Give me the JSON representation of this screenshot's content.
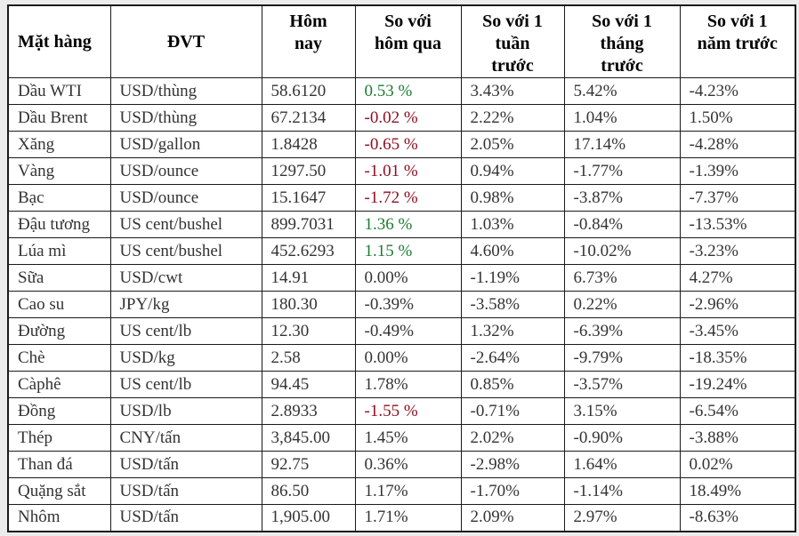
{
  "colors": {
    "positive_green": "#1e7b34",
    "negative_red": "#8e1021",
    "body_text": "#333333",
    "border": "#1a1a1a",
    "page_background": "#ececec",
    "table_background": "#ffffff"
  },
  "chart_data": {
    "type": "table",
    "columns": [
      "Mặt hàng",
      "ĐVT",
      "Hôm nay",
      "So với hôm qua",
      "So với 1 tuần trước",
      "So với 1 tháng trước",
      "So với 1 năm trước"
    ],
    "header_lines": [
      "Mặt hàng",
      "ĐVT",
      "Hôm\nnay",
      "So với\nhôm qua",
      "So với 1\ntuần\ntrước",
      "So với 1\ntháng\ntrước",
      "So với 1\nnăm trước"
    ],
    "rows": [
      {
        "commodity": "Dầu WTI",
        "unit": "USD/thùng",
        "today": "58.6120",
        "vs_yesterday": "0.53 %",
        "vs_yesterday_trend": "up",
        "vs_week": "3.43%",
        "vs_month": "5.42%",
        "vs_year": "-4.23%"
      },
      {
        "commodity": "Dầu Brent",
        "unit": "USD/thùng",
        "today": "67.2134",
        "vs_yesterday": "-0.02 %",
        "vs_yesterday_trend": "down",
        "vs_week": "2.22%",
        "vs_month": "1.04%",
        "vs_year": "1.50%"
      },
      {
        "commodity": "Xăng",
        "unit": "USD/gallon",
        "today": "1.8428",
        "vs_yesterday": "-0.65 %",
        "vs_yesterday_trend": "down",
        "vs_week": "2.05%",
        "vs_month": "17.14%",
        "vs_year": "-4.28%"
      },
      {
        "commodity": "Vàng",
        "unit": "USD/ounce",
        "today": "1297.50",
        "vs_yesterday": "-1.01 %",
        "vs_yesterday_trend": "down",
        "vs_week": "0.94%",
        "vs_month": "-1.77%",
        "vs_year": "-1.39%"
      },
      {
        "commodity": "Bạc",
        "unit": "USD/ounce",
        "today": "15.1647",
        "vs_yesterday": "-1.72 %",
        "vs_yesterday_trend": "down",
        "vs_week": "0.98%",
        "vs_month": "-3.87%",
        "vs_year": "-7.37%"
      },
      {
        "commodity": "Đậu tương",
        "unit": "US cent/bushel",
        "today": "899.7031",
        "vs_yesterday": "1.36 %",
        "vs_yesterday_trend": "up",
        "vs_week": "1.03%",
        "vs_month": "-0.84%",
        "vs_year": "-13.53%"
      },
      {
        "commodity": "Lúa mì",
        "unit": "US cent/bushel",
        "today": "452.6293",
        "vs_yesterday": "1.15 %",
        "vs_yesterday_trend": "up",
        "vs_week": "4.60%",
        "vs_month": "-10.02%",
        "vs_year": "-3.23%"
      },
      {
        "commodity": "Sữa",
        "unit": "USD/cwt",
        "today": "14.91",
        "vs_yesterday": "0.00%",
        "vs_yesterday_trend": "none",
        "vs_week": "-1.19%",
        "vs_month": "6.73%",
        "vs_year": "4.27%"
      },
      {
        "commodity": "Cao su",
        "unit": "JPY/kg",
        "today": "180.30",
        "vs_yesterday": "-0.39%",
        "vs_yesterday_trend": "none",
        "vs_week": "-3.58%",
        "vs_month": "0.22%",
        "vs_year": "-2.96%"
      },
      {
        "commodity": "Đường",
        "unit": "US cent/lb",
        "today": "12.30",
        "vs_yesterday": "-0.49%",
        "vs_yesterday_trend": "none",
        "vs_week": "1.32%",
        "vs_month": "-6.39%",
        "vs_year": "-3.45%"
      },
      {
        "commodity": "Chè",
        "unit": "USD/kg",
        "today": "2.58",
        "vs_yesterday": "0.00%",
        "vs_yesterday_trend": "none",
        "vs_week": "-2.64%",
        "vs_month": "-9.79%",
        "vs_year": "-18.35%"
      },
      {
        "commodity": "Càphê",
        "unit": "US cent/lb",
        "today": "94.45",
        "vs_yesterday": "1.78%",
        "vs_yesterday_trend": "none",
        "vs_week": "0.85%",
        "vs_month": "-3.57%",
        "vs_year": "-19.24%"
      },
      {
        "commodity": "Đồng",
        "unit": "USD/lb",
        "today": "2.8933",
        "vs_yesterday": "-1.55 %",
        "vs_yesterday_trend": "down",
        "vs_week": "-0.71%",
        "vs_month": "3.15%",
        "vs_year": "-6.54%"
      },
      {
        "commodity": "Thép",
        "unit": "CNY/tấn",
        "today": "3,845.00",
        "vs_yesterday": "1.45%",
        "vs_yesterday_trend": "none",
        "vs_week": "2.02%",
        "vs_month": "-0.90%",
        "vs_year": "-3.88%"
      },
      {
        "commodity": "Than đá",
        "unit": "USD/tấn",
        "today": "92.75",
        "vs_yesterday": "0.36%",
        "vs_yesterday_trend": "none",
        "vs_week": "-2.98%",
        "vs_month": "1.64%",
        "vs_year": "0.02%"
      },
      {
        "commodity": "Quặng sắt",
        "unit": "USD/tấn",
        "today": "86.50",
        "vs_yesterday": "1.17%",
        "vs_yesterday_trend": "none",
        "vs_week": "-1.70%",
        "vs_month": "-1.14%",
        "vs_year": "18.49%"
      },
      {
        "commodity": "Nhôm",
        "unit": "USD/tấn",
        "today": "1,905.00",
        "vs_yesterday": "1.71%",
        "vs_yesterday_trend": "none",
        "vs_week": "2.09%",
        "vs_month": "2.97%",
        "vs_year": "-8.63%"
      }
    ]
  }
}
